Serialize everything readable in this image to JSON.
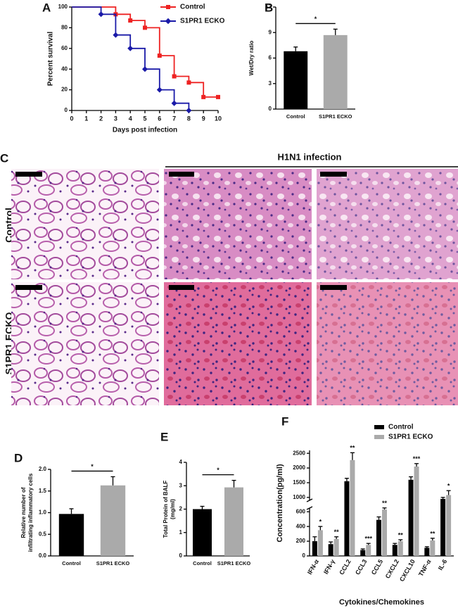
{
  "chart_data": [
    {
      "type": "line",
      "panel": "A",
      "step": true,
      "xlabel": "Days post infection",
      "ylabel": "Percent survival",
      "xlim": [
        0,
        10
      ],
      "xticks": [
        0,
        1,
        2,
        3,
        4,
        5,
        6,
        7,
        8,
        9,
        10
      ],
      "ylim": [
        0,
        100
      ],
      "yticks": [
        0,
        20,
        40,
        60,
        80,
        100
      ],
      "legend": "upper right",
      "series": [
        {
          "name": "Control",
          "color": "#ee2222",
          "marker": "square",
          "x": [
            0,
            3,
            4,
            5,
            6,
            7,
            8,
            9,
            10
          ],
          "values": [
            100,
            93,
            87,
            80,
            53,
            33,
            27,
            13,
            13
          ]
        },
        {
          "name": "S1PR1 ECKO",
          "color": "#1a1aa8",
          "marker": "diamond",
          "x": [
            0,
            2,
            3,
            4,
            5,
            6,
            7,
            8
          ],
          "values": [
            100,
            93,
            73,
            60,
            40,
            20,
            7,
            0
          ]
        }
      ]
    },
    {
      "type": "bar",
      "panel": "B",
      "ylabel": [
        "Wet/Dry ratio"
      ],
      "categories": [
        "Control",
        "S1PR1 ECKO"
      ],
      "values": [
        6.8,
        8.7
      ],
      "errors": [
        0.5,
        0.7
      ],
      "colors": [
        "#000000",
        "#aaaaaa"
      ],
      "ylim": [
        0,
        12
      ],
      "yticks": [
        0,
        3,
        6,
        9,
        12
      ],
      "significance": "*"
    },
    {
      "type": "bar",
      "panel": "D",
      "ylabel": [
        "Relative number of",
        "infiltrating inflammatory cells"
      ],
      "categories": [
        "Control",
        "S1PR1 ECKO"
      ],
      "values": [
        0.97,
        1.63
      ],
      "errors": [
        0.12,
        0.2
      ],
      "colors": [
        "#000000",
        "#aaaaaa"
      ],
      "ylim": [
        0,
        2
      ],
      "yticks": [
        {
          "value": 0,
          "label": "0.0"
        },
        {
          "value": 0.5,
          "label": "0.5"
        },
        {
          "value": 1,
          "label": "1.0"
        },
        {
          "value": 1.5,
          "label": "1.5"
        },
        {
          "value": 2,
          "label": "2.0"
        }
      ],
      "significance": "*"
    },
    {
      "type": "bar",
      "panel": "E",
      "ylabel": [
        "Total Protein of BALF",
        "(mg/ml)"
      ],
      "categories": [
        "Control",
        "S1PR1 ECKO"
      ],
      "values": [
        2.0,
        2.93
      ],
      "errors": [
        0.12,
        0.3
      ],
      "colors": [
        "#000000",
        "#aaaaaa"
      ],
      "ylim": [
        0,
        4
      ],
      "yticks": [
        0,
        1,
        2,
        3,
        4
      ],
      "significance": "*"
    },
    {
      "type": "bar",
      "panel": "F",
      "ylabel": [
        "Concentration(pg/ml)"
      ],
      "xlabel": "Cytokines/Chemokines",
      "legend": "upper right",
      "categories": [
        "IFN-α",
        "IFN-γ",
        "CCL2",
        "CCL3",
        "CCL5",
        "CXCL2",
        "CXCL10",
        "TNF-α",
        "IL-6"
      ],
      "ylim": [
        0,
        2600
      ],
      "axis_break": [
        650,
        900
      ],
      "yticks": [
        0,
        200,
        400,
        600,
        1000,
        1500,
        2000,
        2500
      ],
      "series": [
        {
          "name": "Control",
          "color": "#000000",
          "values": [
            200,
            160,
            1550,
            80,
            490,
            150,
            1600,
            110,
            950
          ],
          "errors": [
            60,
            30,
            100,
            15,
            40,
            20,
            100,
            15,
            50
          ]
        },
        {
          "name": "S1PR1 ECKO",
          "color": "#aaaaaa",
          "values": [
            350,
            230,
            2270,
            150,
            630,
            200,
            2050,
            210,
            1080
          ],
          "errors": [
            50,
            30,
            250,
            20,
            25,
            20,
            100,
            30,
            150
          ]
        }
      ],
      "significance": [
        "*",
        "**",
        "**",
        "***",
        "**",
        "**",
        "***",
        "**",
        "*"
      ]
    }
  ],
  "histology": {
    "panel": "C",
    "header": "H1N1 infection",
    "rows": [
      "Control",
      "S1PR1 ECKO"
    ]
  }
}
